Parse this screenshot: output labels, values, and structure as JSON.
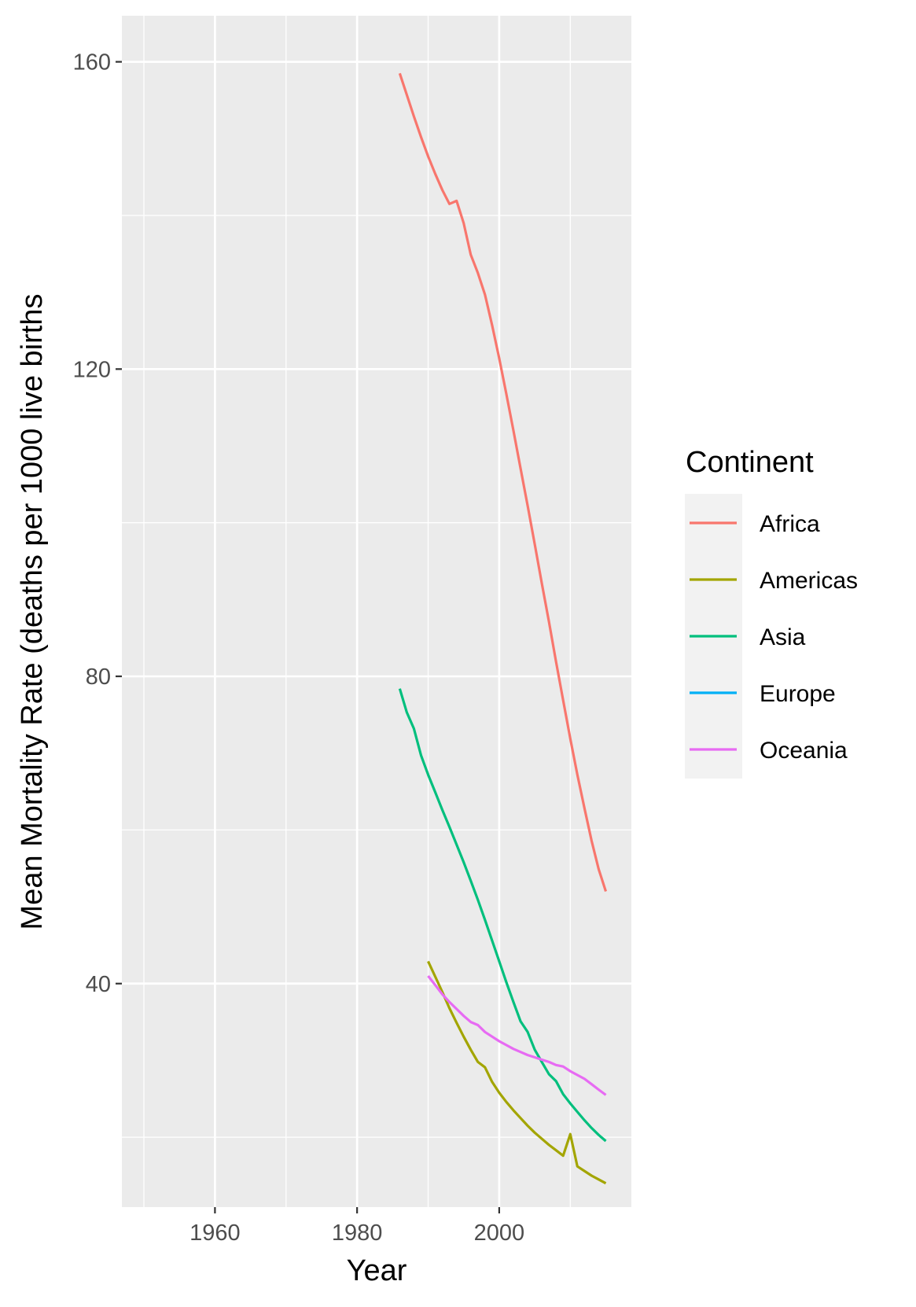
{
  "chart_data": {
    "type": "line",
    "xlabel": "Year",
    "ylabel": "Mean Mortality Rate (deaths per 1000 live births",
    "xlim": [
      1946.9,
      2018.6
    ],
    "ylim": [
      10.9,
      166.0
    ],
    "x_ticks": [
      1960,
      1980,
      2000
    ],
    "x_minor": [
      1950,
      1970,
      1990,
      2010
    ],
    "y_ticks": [
      40,
      80,
      120,
      160
    ],
    "y_minor": [
      20,
      60,
      100,
      140
    ],
    "x_tick_labels": [
      "1960",
      "1980",
      "2000"
    ],
    "y_tick_labels": [
      "40",
      "80",
      "120",
      "160"
    ],
    "grid": true,
    "legend": {
      "title": "Continent",
      "position": "right"
    },
    "series": [
      {
        "name": "Africa",
        "color": "#F8766D",
        "x": [
          1986,
          1987,
          1988,
          1989,
          1990,
          1991,
          1992,
          1993,
          1994,
          1995,
          1996,
          1997,
          1998,
          1999,
          2000,
          2001,
          2002,
          2003,
          2004,
          2005,
          2006,
          2007,
          2008,
          2009,
          2010,
          2011,
          2012,
          2013,
          2014,
          2015
        ],
        "y": [
          158.5,
          155.7,
          152.9,
          150.2,
          147.7,
          145.4,
          143.3,
          141.5,
          141.9,
          139.0,
          134.9,
          132.5,
          129.7,
          125.7,
          121.4,
          116.8,
          112.0,
          107.1,
          102.2,
          97.2,
          92.1,
          87.1,
          81.9,
          76.9,
          71.9,
          67.2,
          62.8,
          58.6,
          54.9,
          52.0
        ]
      },
      {
        "name": "Americas",
        "color": "#A3A500",
        "x": [
          1990,
          1991,
          1992,
          1993,
          1994,
          1995,
          1996,
          1997,
          1998,
          1999,
          2000,
          2001,
          2002,
          2003,
          2004,
          2005,
          2006,
          2007,
          2008,
          2009,
          2010,
          2011,
          2012,
          2013,
          2014,
          2015
        ],
        "y": [
          42.9,
          40.9,
          38.9,
          36.8,
          34.9,
          33.1,
          31.4,
          29.8,
          29.1,
          27.2,
          25.8,
          24.6,
          23.5,
          22.5,
          21.5,
          20.6,
          19.8,
          19.0,
          18.3,
          17.6,
          20.4,
          16.2,
          15.6,
          15.0,
          14.5,
          14.0
        ]
      },
      {
        "name": "Asia",
        "color": "#00BF7D",
        "x": [
          1986,
          1987,
          1988,
          1989,
          1990,
          1991,
          1992,
          1993,
          1994,
          1995,
          1996,
          1997,
          1998,
          1999,
          2000,
          2001,
          2002,
          2003,
          2004,
          2005,
          2006,
          2007,
          2008,
          2009,
          2010,
          2011,
          2012,
          2013,
          2014,
          2015
        ],
        "y": [
          78.4,
          75.3,
          73.2,
          69.7,
          67.2,
          64.9,
          62.6,
          60.4,
          58.1,
          55.8,
          53.4,
          50.9,
          48.3,
          45.6,
          42.9,
          40.2,
          37.6,
          35.1,
          33.7,
          31.4,
          29.8,
          28.2,
          27.3,
          25.6,
          24.4,
          23.3,
          22.2,
          21.2,
          20.3,
          19.5
        ]
      },
      {
        "name": "Europe",
        "color": "#00B0F6",
        "x": [],
        "y": []
      },
      {
        "name": "Oceania",
        "color": "#E76BF3",
        "x": [
          1990,
          1991,
          1992,
          1993,
          1994,
          1995,
          1996,
          1997,
          1998,
          1999,
          2000,
          2001,
          2002,
          2003,
          2004,
          2005,
          2006,
          2007,
          2008,
          2009,
          2010,
          2011,
          2012,
          2013,
          2014,
          2015
        ],
        "y": [
          41.0,
          39.8,
          38.6,
          37.6,
          36.7,
          35.8,
          35.0,
          34.6,
          33.7,
          33.1,
          32.5,
          32.0,
          31.5,
          31.1,
          30.7,
          30.4,
          30.1,
          29.8,
          29.4,
          29.2,
          28.6,
          28.1,
          27.6,
          26.9,
          26.2,
          25.5
        ]
      }
    ]
  }
}
